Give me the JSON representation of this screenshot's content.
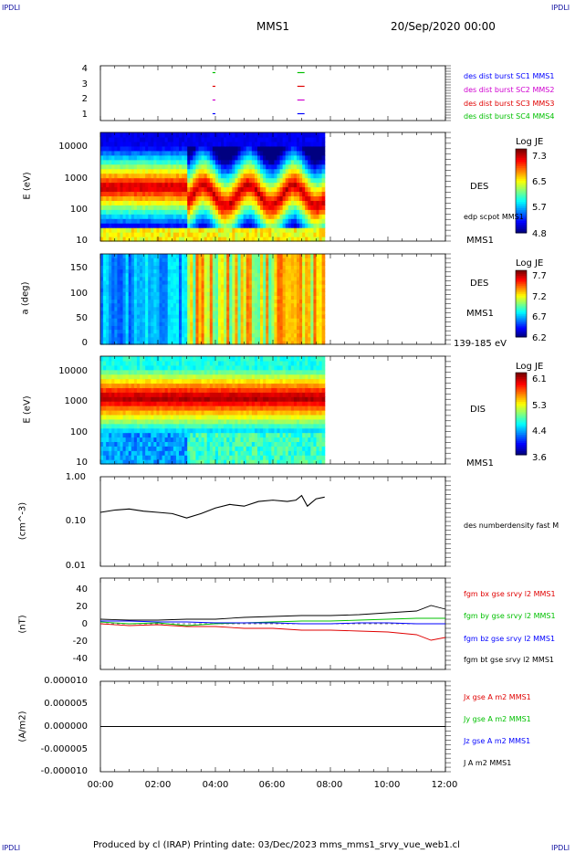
{
  "header": {
    "corner_tl": "IPDLI",
    "corner_tr": "IPDLI",
    "corner_bl": "IPDLI",
    "corner_br": "IPDLI",
    "spacecraft": "MMS1",
    "date": "20/Sep/2020 00:00"
  },
  "footer": {
    "text": "Produced by cl (IRAP)   Printing date: 03/Dec/2023   mms_mms1_srvy_vue_web1.cl"
  },
  "x_axis": {
    "tick_labels": [
      "00:00",
      "02:00",
      "04:00",
      "06:00",
      "08:00",
      "10:00",
      "12:00"
    ]
  },
  "colors": {
    "blue": "#0000ff",
    "magenta": "#d000d0",
    "red": "#e00000",
    "green": "#00c000",
    "black": "#000000"
  },
  "panels": {
    "burst": {
      "y_ticks": [
        "4",
        "3",
        "2",
        "1"
      ],
      "legend": [
        {
          "label": "des dist burst SC1 MMS1",
          "color": "#0000ff"
        },
        {
          "label": "des dist burst SC2 MMS2",
          "color": "#d000d0"
        },
        {
          "label": "des dist burst SC3 MMS3",
          "color": "#e00000"
        },
        {
          "label": "des dist burst SC4 MMS4",
          "color": "#00c000"
        }
      ]
    },
    "des_energy": {
      "ylabel": "E (eV)",
      "y_ticks": [
        "10000",
        "1000",
        "100",
        "10"
      ],
      "right_label": "DES",
      "right_sub": "MMS1",
      "overlay_label": "edp scpot MMS1",
      "colorbar_title": "Log JE",
      "colorbar_ticks": [
        "7.3",
        "6.5",
        "5.7",
        "4.8"
      ]
    },
    "des_pitch": {
      "ylabel": "a (deg)",
      "y_ticks": [
        "150",
        "100",
        "50",
        "0"
      ],
      "right_label": "DES",
      "right_sub": "MMS1",
      "energy_range": "139-185 eV",
      "colorbar_title": "Log JE",
      "colorbar_ticks": [
        "7.7",
        "7.2",
        "6.7",
        "6.2"
      ]
    },
    "dis_energy": {
      "ylabel": "E (eV)",
      "y_ticks": [
        "10000",
        "1000",
        "100",
        "10"
      ],
      "right_label": "DIS",
      "right_sub": "MMS1",
      "colorbar_title": "Log JE",
      "colorbar_ticks": [
        "6.1",
        "5.3",
        "4.4",
        "3.6"
      ]
    },
    "density": {
      "ylabel": "(cm^-3)",
      "y_ticks": [
        "1.00",
        "0.10",
        "0.01"
      ],
      "legend": "des numberdensity fast M"
    },
    "bfield": {
      "ylabel": "(nT)",
      "y_ticks": [
        "40",
        "20",
        "0",
        "-20",
        "-40"
      ],
      "legend": [
        {
          "label": "fgm bx gse srvy l2 MMS1",
          "color": "#e00000"
        },
        {
          "label": "fgm by gse srvy l2 MMS1",
          "color": "#00c000"
        },
        {
          "label": "fgm bz gse srvy l2 MMS1",
          "color": "#0000ff"
        },
        {
          "label": "fgm bt gse srvy l2 MMS1",
          "color": "#000000"
        }
      ]
    },
    "current": {
      "ylabel": "(A/m2)",
      "y_ticks": [
        "0.000010",
        "0.000005",
        "0.000000",
        "-0.000005",
        "-0.000010"
      ],
      "legend": [
        {
          "label": "Jx gse A m2 MMS1",
          "color": "#e00000"
        },
        {
          "label": "Jy gse A m2 MMS1",
          "color": "#00c000"
        },
        {
          "label": "Jz gse A m2 MMS1",
          "color": "#0000ff"
        },
        {
          "label": "J A m2 MMS1",
          "color": "#000000"
        }
      ]
    }
  },
  "chart_data": [
    {
      "type": "scatter",
      "title": "",
      "panel": "burst",
      "ylim": [
        0.5,
        4.5
      ],
      "series": [
        {
          "name": "des dist burst SC1 MMS1",
          "color": "#0000ff",
          "y": 1,
          "intervals": [
            [
              3.9,
              4.0
            ],
            [
              6.85,
              7.1
            ]
          ]
        },
        {
          "name": "des dist burst SC2 MMS2",
          "color": "#d000d0",
          "y": 2,
          "intervals": [
            [
              3.9,
              4.0
            ],
            [
              6.85,
              7.1
            ]
          ]
        },
        {
          "name": "des dist burst SC3 MMS3",
          "color": "#e00000",
          "y": 3,
          "intervals": [
            [
              3.9,
              4.0
            ],
            [
              6.85,
              7.1
            ]
          ]
        },
        {
          "name": "des dist burst SC4 MMS4",
          "color": "#00c000",
          "y": 4,
          "intervals": [
            [
              3.9,
              4.0
            ],
            [
              6.85,
              7.1
            ]
          ]
        }
      ]
    },
    {
      "type": "heatmap",
      "panel": "des_energy",
      "xlim": [
        0,
        12
      ],
      "ylim": [
        10,
        30000
      ],
      "y_scale": "log",
      "data_end_hour": 7.8,
      "colorbar_range": [
        4.8,
        7.3
      ]
    },
    {
      "type": "heatmap",
      "panel": "des_pitch",
      "xlim": [
        0,
        12
      ],
      "ylim": [
        0,
        180
      ],
      "data_end_hour": 7.8,
      "colorbar_range": [
        6.2,
        7.7
      ]
    },
    {
      "type": "heatmap",
      "panel": "dis_energy",
      "xlim": [
        0,
        12
      ],
      "ylim": [
        10,
        30000
      ],
      "y_scale": "log",
      "data_end_hour": 7.8,
      "colorbar_range": [
        3.6,
        6.1
      ]
    },
    {
      "type": "line",
      "panel": "density",
      "y_scale": "log",
      "ylim": [
        0.01,
        1.0
      ],
      "series": [
        {
          "name": "des numberdensity fast M",
          "color": "#000000",
          "x": [
            0.0,
            0.5,
            1.0,
            1.5,
            2.0,
            2.5,
            3.0,
            3.5,
            4.0,
            4.5,
            5.0,
            5.5,
            6.0,
            6.5,
            6.8,
            7.0,
            7.2,
            7.5,
            7.8
          ],
          "y": [
            0.16,
            0.18,
            0.19,
            0.17,
            0.16,
            0.15,
            0.12,
            0.15,
            0.2,
            0.24,
            0.22,
            0.28,
            0.3,
            0.28,
            0.3,
            0.38,
            0.22,
            0.32,
            0.35
          ]
        }
      ]
    },
    {
      "type": "line",
      "panel": "bfield",
      "ylim": [
        -50,
        50
      ],
      "series": [
        {
          "name": "fgm bx gse srvy l2 MMS1",
          "color": "#e00000",
          "x": [
            0,
            1,
            2,
            3,
            4,
            5,
            6,
            7,
            8,
            9,
            10,
            11,
            11.5,
            12
          ],
          "y": [
            0,
            -2,
            -1,
            -3,
            -3,
            -5,
            -5,
            -7,
            -7,
            -8,
            -9,
            -12,
            -18,
            -15
          ]
        },
        {
          "name": "fgm by gse srvy l2 MMS1",
          "color": "#00c000",
          "x": [
            0,
            1,
            2,
            3,
            4,
            5,
            6,
            7,
            8,
            9,
            10,
            11,
            12
          ],
          "y": [
            2,
            0,
            1,
            -2,
            0,
            1,
            2,
            3,
            3,
            4,
            5,
            6,
            6
          ]
        },
        {
          "name": "fgm bz gse srvy l2 MMS1",
          "color": "#0000ff",
          "x": [
            0,
            1,
            2,
            3,
            4,
            5,
            6,
            7,
            8,
            9,
            10,
            11,
            12
          ],
          "y": [
            3,
            3,
            2,
            2,
            1,
            1,
            1,
            0,
            0,
            1,
            1,
            0,
            0
          ]
        },
        {
          "name": "fgm bt gse srvy l2 MMS1",
          "color": "#000000",
          "x": [
            0,
            1,
            2,
            3,
            4,
            5,
            6,
            7,
            8,
            9,
            10,
            11,
            11.5,
            12
          ],
          "y": [
            5,
            4,
            4,
            5,
            5,
            7,
            8,
            9,
            9,
            10,
            12,
            14,
            20,
            16
          ]
        }
      ]
    },
    {
      "type": "line",
      "panel": "current",
      "ylim": [
        -1e-05,
        1e-05
      ],
      "series": [
        {
          "name": "J A m2 MMS1",
          "color": "#000000",
          "x": [
            0,
            12
          ],
          "y": [
            0,
            0
          ]
        }
      ]
    }
  ]
}
